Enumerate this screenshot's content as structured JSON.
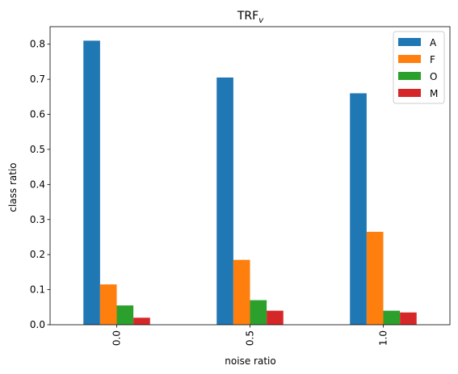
{
  "chart_data": {
    "type": "bar",
    "title": "TRF",
    "title_subscript": "v",
    "xlabel": "noise ratio",
    "ylabel": "class ratio",
    "categories": [
      "0.0",
      "0.5",
      "1.0"
    ],
    "series": [
      {
        "name": "A",
        "color": "#1f77b4",
        "values": [
          0.81,
          0.705,
          0.66
        ]
      },
      {
        "name": "F",
        "color": "#ff7f0e",
        "values": [
          0.115,
          0.185,
          0.265
        ]
      },
      {
        "name": "O",
        "color": "#2ca02c",
        "values": [
          0.055,
          0.07,
          0.04
        ]
      },
      {
        "name": "M",
        "color": "#d62728",
        "values": [
          0.02,
          0.04,
          0.035
        ]
      }
    ],
    "ylim": [
      0,
      0.85
    ],
    "yticks": [
      "0.0",
      "0.1",
      "0.2",
      "0.3",
      "0.4",
      "0.5",
      "0.6",
      "0.7",
      "0.8"
    ],
    "grid": false,
    "legend_position": "top-right",
    "xtick_rotation": "vertical"
  }
}
